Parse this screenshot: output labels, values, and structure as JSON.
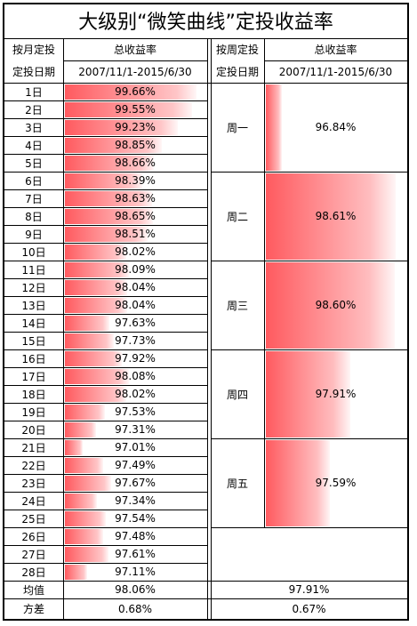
{
  "title": "大级别“微笑曲线”定投收益率",
  "monthly": {
    "header_label": [
      "按月定投",
      "定投日期"
    ],
    "col_header": "总收益率",
    "period": "2007/11/1-2015/6/30",
    "rows": [
      {
        "day": "1日",
        "value": "99.66%",
        "num": 99.66
      },
      {
        "day": "2日",
        "value": "99.55%",
        "num": 99.55
      },
      {
        "day": "3日",
        "value": "99.23%",
        "num": 99.23
      },
      {
        "day": "4日",
        "value": "98.85%",
        "num": 98.85
      },
      {
        "day": "5日",
        "value": "98.66%",
        "num": 98.66
      },
      {
        "day": "6日",
        "value": "98.39%",
        "num": 98.39
      },
      {
        "day": "7日",
        "value": "98.63%",
        "num": 98.63
      },
      {
        "day": "8日",
        "value": "98.65%",
        "num": 98.65
      },
      {
        "day": "9日",
        "value": "98.51%",
        "num": 98.51
      },
      {
        "day": "10日",
        "value": "98.02%",
        "num": 98.02
      },
      {
        "day": "11日",
        "value": "98.09%",
        "num": 98.09
      },
      {
        "day": "12日",
        "value": "98.04%",
        "num": 98.04
      },
      {
        "day": "13日",
        "value": "98.04%",
        "num": 98.04
      },
      {
        "day": "14日",
        "value": "97.63%",
        "num": 97.63
      },
      {
        "day": "15日",
        "value": "97.73%",
        "num": 97.73
      },
      {
        "day": "16日",
        "value": "97.92%",
        "num": 97.92
      },
      {
        "day": "17日",
        "value": "98.08%",
        "num": 98.08
      },
      {
        "day": "18日",
        "value": "98.02%",
        "num": 98.02
      },
      {
        "day": "19日",
        "value": "97.53%",
        "num": 97.53
      },
      {
        "day": "20日",
        "value": "97.31%",
        "num": 97.31
      },
      {
        "day": "21日",
        "value": "97.01%",
        "num": 97.01
      },
      {
        "day": "22日",
        "value": "97.49%",
        "num": 97.49
      },
      {
        "day": "23日",
        "value": "97.67%",
        "num": 97.67
      },
      {
        "day": "24日",
        "value": "97.34%",
        "num": 97.34
      },
      {
        "day": "25日",
        "value": "97.54%",
        "num": 97.54
      },
      {
        "day": "26日",
        "value": "97.48%",
        "num": 97.48
      },
      {
        "day": "27日",
        "value": "97.61%",
        "num": 97.61
      },
      {
        "day": "28日",
        "value": "97.11%",
        "num": 97.11
      }
    ],
    "mean_label": "均值",
    "mean_value": "98.06%",
    "var_label": "方差",
    "var_value": "0.68%"
  },
  "weekly": {
    "header_label": [
      "按周定投",
      "定投日期"
    ],
    "col_header": "总收益率",
    "period": "2007/11/1-2015/6/30",
    "rows": [
      {
        "day": "周一",
        "value": "96.84%",
        "num": 96.84
      },
      {
        "day": "周二",
        "value": "98.61%",
        "num": 98.61
      },
      {
        "day": "周三",
        "value": "98.60%",
        "num": 98.6
      },
      {
        "day": "周四",
        "value": "97.91%",
        "num": 97.91
      },
      {
        "day": "周五",
        "value": "97.59%",
        "num": 97.59
      }
    ],
    "mean_value": "97.91%",
    "var_value": "0.67%"
  },
  "colors": {
    "bar": "#ff5a5f",
    "grid": "#000000"
  }
}
